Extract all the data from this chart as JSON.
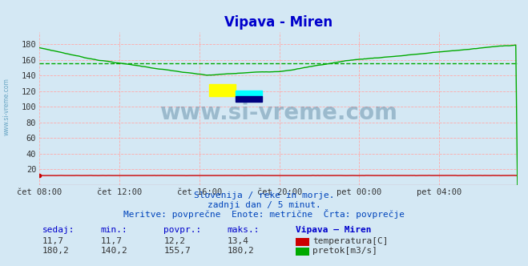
{
  "title": "Vipava - Miren",
  "bg_color": "#d4e8f4",
  "plot_bg_color": "#d4e8f4",
  "grid_color": "#ffaaaa",
  "title_color": "#0000cc",
  "title_fontsize": 12,
  "xlim": [
    0,
    287
  ],
  "ylim": [
    0,
    196
  ],
  "ytick_vals": [
    20,
    40,
    60,
    80,
    100,
    120,
    140,
    160,
    180
  ],
  "xtick_labels": [
    "čet 08:00",
    "čet 12:00",
    "čet 16:00",
    "čet 20:00",
    "pet 00:00",
    "pet 04:00"
  ],
  "xtick_positions": [
    0,
    48,
    96,
    144,
    192,
    240
  ],
  "avg_pretok": 155.7,
  "temp_color": "#cc0000",
  "pretok_color": "#00aa00",
  "avg_line_color": "#00aa00",
  "watermark": "www.si-vreme.com",
  "watermark_color": "#1a5276",
  "subtitle1": "Slovenija / reke in morje.",
  "subtitle2": "zadnji dan / 5 minut.",
  "subtitle3": "Meritve: povprečne  Enote: metrične  Črta: povprečje",
  "subtitle_color": "#0044bb",
  "table_headers": [
    "sedaj:",
    "min.:",
    "povpr.:",
    "maks.:",
    "Vipava – Miren"
  ],
  "table_color": "#0000cc",
  "row1_vals": [
    "11,7",
    "11,7",
    "12,2",
    "13,4"
  ],
  "row2_vals": [
    "180,2",
    "140,2",
    "155,7",
    "180,2"
  ],
  "label1": "temperatura[C]",
  "label2": "pretok[m3/s]"
}
